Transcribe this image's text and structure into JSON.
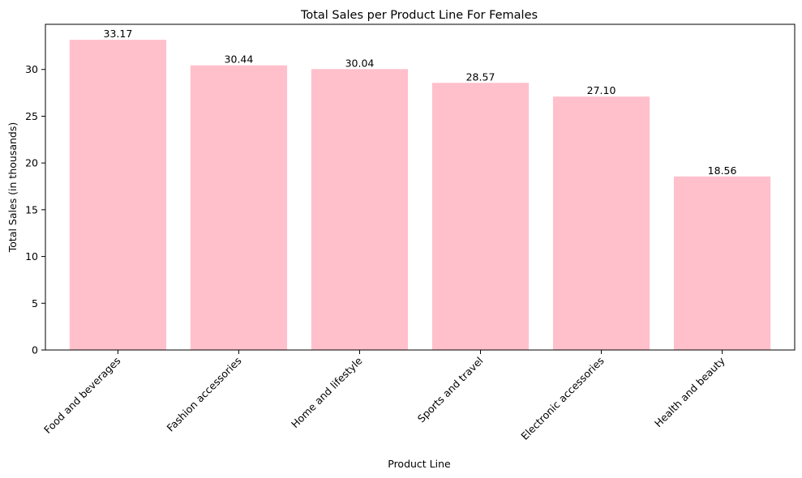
{
  "chart_data": {
    "type": "bar",
    "title": "Total Sales per Product Line For Females",
    "xlabel": "Product Line",
    "ylabel": "Total Sales (in thousands)",
    "categories": [
      "Food and beverages",
      "Fashion accessories",
      "Home and lifestyle",
      "Sports and travel",
      "Electronic accessories",
      "Health and beauty"
    ],
    "values": [
      33.17,
      30.44,
      30.04,
      28.57,
      27.1,
      18.56
    ],
    "value_labels": [
      "33.17",
      "30.44",
      "30.04",
      "28.57",
      "27.10",
      "18.56"
    ],
    "yticks": [
      0,
      5,
      10,
      15,
      20,
      25,
      30
    ],
    "ylim": [
      0,
      34.83
    ],
    "bar_color": "#ffc0cb",
    "grid": false,
    "legend": "none"
  }
}
